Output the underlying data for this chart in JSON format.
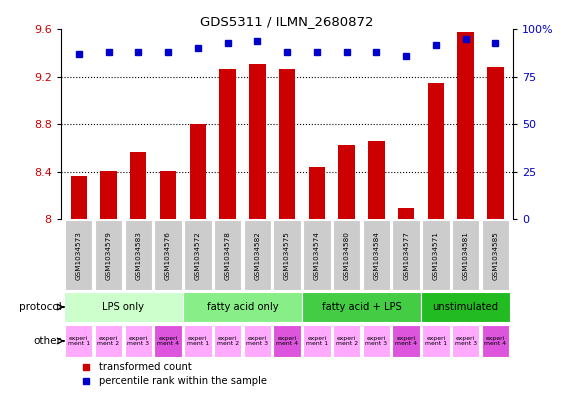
{
  "title": "GDS5311 / ILMN_2680872",
  "samples": [
    "GSM1034573",
    "GSM1034579",
    "GSM1034583",
    "GSM1034576",
    "GSM1034572",
    "GSM1034578",
    "GSM1034582",
    "GSM1034575",
    "GSM1034574",
    "GSM1034580",
    "GSM1034584",
    "GSM1034577",
    "GSM1034571",
    "GSM1034581",
    "GSM1034585"
  ],
  "transformed_count": [
    8.37,
    8.41,
    8.57,
    8.41,
    8.8,
    9.27,
    9.31,
    9.27,
    8.44,
    8.63,
    8.66,
    8.1,
    9.15,
    9.58,
    9.28
  ],
  "percentile_rank": [
    87,
    88,
    88,
    88,
    90,
    93,
    94,
    88,
    88,
    88,
    88,
    86,
    92,
    95,
    93
  ],
  "ylim_left": [
    8.0,
    9.6
  ],
  "ylim_right": [
    0,
    100
  ],
  "yticks_left": [
    8.0,
    8.4,
    8.8,
    9.2,
    9.6
  ],
  "ytick_labels_left": [
    "8",
    "8.4",
    "8.8",
    "9.2",
    "9.6"
  ],
  "yticks_right": [
    0,
    25,
    50,
    75,
    100
  ],
  "ytick_labels_right": [
    "0",
    "25",
    "50",
    "75",
    "100%"
  ],
  "bar_color": "#cc0000",
  "dot_color": "#0000cc",
  "protocol_groups": [
    {
      "label": "LPS only",
      "start": 0,
      "end": 3,
      "color": "#ccffcc"
    },
    {
      "label": "fatty acid only",
      "start": 4,
      "end": 7,
      "color": "#88ee88"
    },
    {
      "label": "fatty acid + LPS",
      "start": 8,
      "end": 11,
      "color": "#44cc44"
    },
    {
      "label": "unstimulated",
      "start": 12,
      "end": 14,
      "color": "#22bb22"
    }
  ],
  "other_colors": [
    "#ffaaff",
    "#ffaaff",
    "#ffaaff",
    "#dd55dd",
    "#ffaaff",
    "#ffaaff",
    "#ffaaff",
    "#dd55dd",
    "#ffaaff",
    "#ffaaff",
    "#ffaaff",
    "#dd55dd",
    "#ffaaff",
    "#ffaaff",
    "#dd55dd"
  ],
  "other_labels": [
    "experi\nment 1",
    "experi\nment 2",
    "experi\nment 3",
    "experi\nment 4",
    "experi\nment 1",
    "experi\nment 2",
    "experi\nment 3",
    "experi\nment 4",
    "experi\nment 1",
    "experi\nment 2",
    "experi\nment 3",
    "experi\nment 4",
    "experi\nment 1",
    "experi\nment 3",
    "experi\nment 4"
  ],
  "legend_bar_label": "transformed count",
  "legend_dot_label": "percentile rank within the sample",
  "protocol_label": "protocol",
  "other_label": "other",
  "sample_box_color": "#cccccc",
  "chart_bg": "#ffffff",
  "bar_width": 0.55
}
